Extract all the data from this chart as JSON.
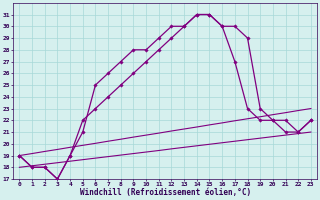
{
  "xlabel": "Windchill (Refroidissement éolien,°C)",
  "x_hours": [
    0,
    1,
    2,
    3,
    4,
    5,
    6,
    7,
    8,
    9,
    10,
    11,
    12,
    13,
    14,
    15,
    16,
    17,
    18,
    19,
    20,
    21,
    22,
    23
  ],
  "curve1": [
    19,
    18,
    18,
    17,
    19,
    21,
    25,
    26,
    27,
    28,
    28,
    29,
    30,
    30,
    31,
    31,
    30,
    27,
    23,
    22,
    22,
    21,
    21,
    22
  ],
  "curve2": [
    19,
    18,
    18,
    17,
    19,
    22,
    23,
    24,
    25,
    26,
    27,
    28,
    29,
    30,
    31,
    31,
    30,
    30,
    29,
    23,
    22,
    22,
    21,
    22
  ],
  "diag_upper": [
    19.0,
    19.17,
    19.35,
    19.52,
    19.7,
    19.87,
    20.04,
    20.22,
    20.39,
    20.57,
    20.74,
    20.91,
    21.09,
    21.26,
    21.43,
    21.61,
    21.78,
    21.96,
    22.13,
    22.3,
    22.48,
    22.65,
    22.83,
    23.0
  ],
  "diag_lower": [
    18.0,
    18.13,
    18.26,
    18.39,
    18.52,
    18.65,
    18.78,
    18.91,
    19.04,
    19.17,
    19.3,
    19.43,
    19.57,
    19.7,
    19.83,
    19.96,
    20.09,
    20.22,
    20.35,
    20.48,
    20.61,
    20.74,
    20.87,
    21.0
  ],
  "ylim": [
    17,
    31.5
  ],
  "xlim": [
    -0.5,
    23.5
  ],
  "yticks": [
    17,
    18,
    19,
    20,
    21,
    22,
    23,
    24,
    25,
    26,
    27,
    28,
    29,
    30,
    31
  ],
  "xticks": [
    0,
    1,
    2,
    3,
    4,
    5,
    6,
    7,
    8,
    9,
    10,
    11,
    12,
    13,
    14,
    15,
    16,
    17,
    18,
    19,
    20,
    21,
    22,
    23
  ],
  "line_color": "#800080",
  "bg_color": "#d6f0ee",
  "grid_color": "#a8d8d8",
  "text_color": "#330055",
  "spine_color": "#330055"
}
